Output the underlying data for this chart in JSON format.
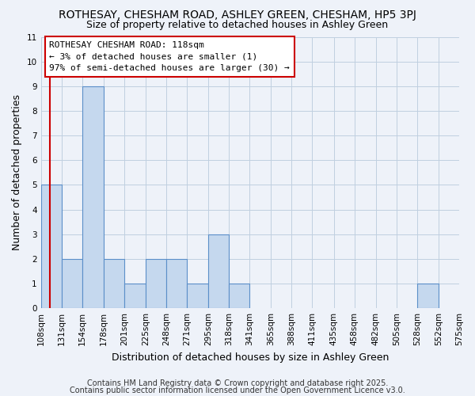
{
  "title": "ROTHESAY, CHESHAM ROAD, ASHLEY GREEN, CHESHAM, HP5 3PJ",
  "subtitle": "Size of property relative to detached houses in Ashley Green",
  "xlabel": "Distribution of detached houses by size in Ashley Green",
  "ylabel": "Number of detached properties",
  "bin_edges": [
    108,
    131,
    154,
    178,
    201,
    225,
    248,
    271,
    295,
    318,
    341,
    365,
    388,
    411,
    435,
    458,
    482,
    505,
    528,
    552,
    575
  ],
  "bin_labels": [
    "108sqm",
    "131sqm",
    "154sqm",
    "178sqm",
    "201sqm",
    "225sqm",
    "248sqm",
    "271sqm",
    "295sqm",
    "318sqm",
    "341sqm",
    "365sqm",
    "388sqm",
    "411sqm",
    "435sqm",
    "458sqm",
    "482sqm",
    "505sqm",
    "528sqm",
    "552sqm",
    "575sqm"
  ],
  "counts": [
    5,
    2,
    9,
    2,
    1,
    2,
    2,
    1,
    3,
    1,
    0,
    0,
    0,
    0,
    0,
    0,
    0,
    0,
    1,
    0
  ],
  "ylim": [
    0,
    11
  ],
  "yticks": [
    0,
    1,
    2,
    3,
    4,
    5,
    6,
    7,
    8,
    9,
    10,
    11
  ],
  "bar_color": "#c5d8ee",
  "bar_edge_color": "#5b8fc9",
  "red_line_x": 118,
  "annotation_line1": "ROTHESAY CHESHAM ROAD: 118sqm",
  "annotation_line2": "← 3% of detached houses are smaller (1)",
  "annotation_line3": "97% of semi-detached houses are larger (30) →",
  "footer_line1": "Contains HM Land Registry data © Crown copyright and database right 2025.",
  "footer_line2": "Contains public sector information licensed under the Open Government Licence v3.0.",
  "background_color": "#eef2f9",
  "plot_bg_color": "#eef2f9",
  "grid_color": "#c0cfe0",
  "title_fontsize": 10,
  "subtitle_fontsize": 9,
  "axis_label_fontsize": 9,
  "tick_fontsize": 7.5,
  "annotation_fontsize": 8,
  "footer_fontsize": 7
}
